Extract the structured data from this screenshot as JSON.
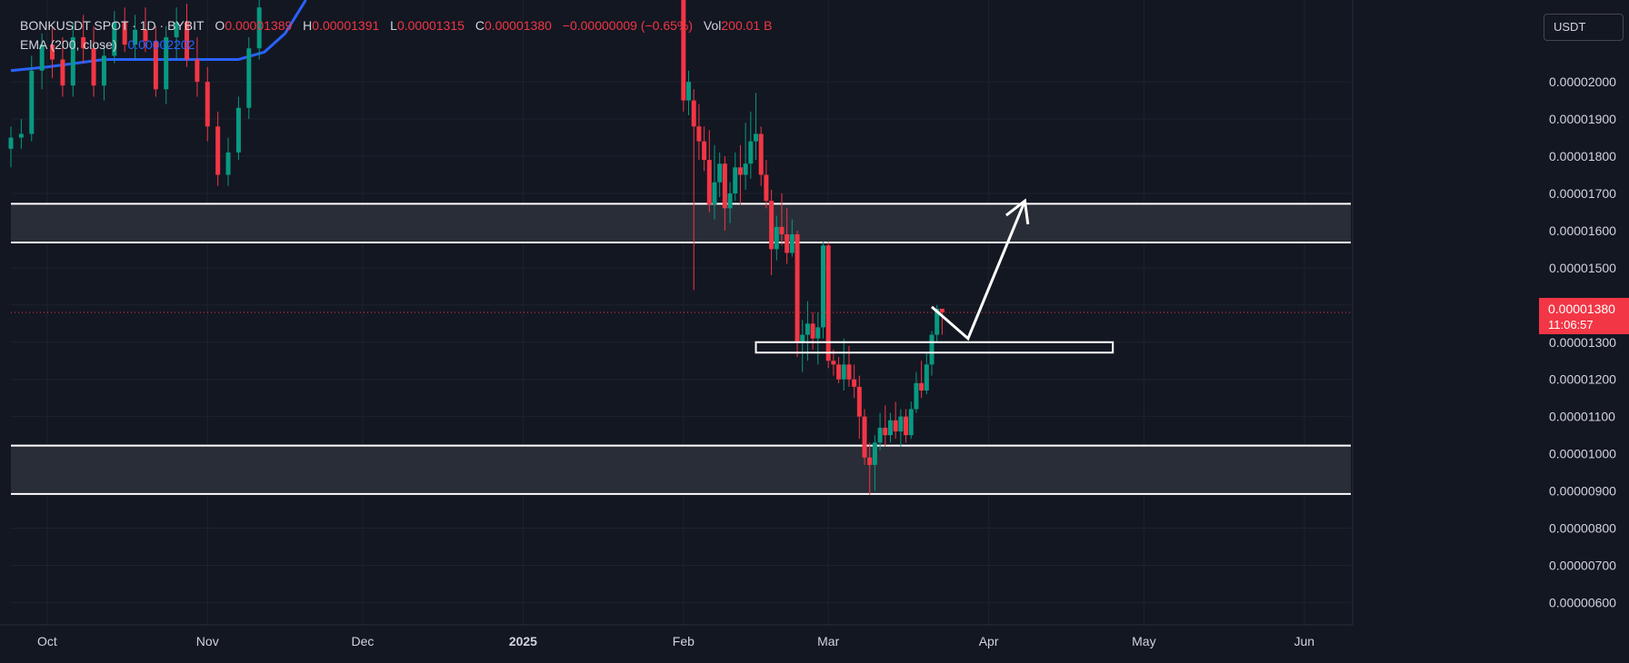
{
  "legend": {
    "symbol": "BONKUSDT SPOT · 1D · BYBIT",
    "o_label": "O",
    "o_value": "0.00001389",
    "h_label": "H",
    "h_value": "0.00001391",
    "l_label": "L",
    "l_value": "0.00001315",
    "c_label": "C",
    "c_value": "0.00001380",
    "change": "−0.00000009 (−0.65%)",
    "vol_label": "Vol",
    "vol_value": "200.01 B",
    "ema_label": "EMA (200, close)",
    "ema_value": "0.00002202"
  },
  "currency": "USDT",
  "last_price": {
    "value": "0.00001380",
    "countdown": "11:06:57"
  },
  "colors": {
    "background": "#131722",
    "up": "#089981",
    "down": "#f23645",
    "ema": "#2962ff",
    "zone": "#2a2e39",
    "axis_text": "#d1d4dc"
  },
  "chart_data": {
    "type": "candlestick",
    "x_axis": {
      "range": [
        "2024-09-24",
        "2025-06-10"
      ],
      "tick_labels": [
        {
          "label": "Oct",
          "date": "2024-10-01"
        },
        {
          "label": "Nov",
          "date": "2024-11-01"
        },
        {
          "label": "Dec",
          "date": "2024-12-01"
        },
        {
          "label": "2025",
          "date": "2025-01-01"
        },
        {
          "label": "Feb",
          "date": "2025-02-01"
        },
        {
          "label": "Mar",
          "date": "2025-03-01"
        },
        {
          "label": "Apr",
          "date": "2025-04-01"
        },
        {
          "label": "May",
          "date": "2025-05-01"
        },
        {
          "label": "Jun",
          "date": "2025-06-01"
        }
      ]
    },
    "y_axis": {
      "range": [
        5.4e-06,
        2.22e-05
      ],
      "ticks": [
        "0.00002000",
        "0.00001900",
        "0.00001800",
        "0.00001700",
        "0.00001600",
        "0.00001500",
        "0.00001400",
        "0.00001300",
        "0.00001200",
        "0.00001100",
        "0.00001000",
        "0.00000900",
        "0.00000800",
        "0.00000700",
        "0.00000600"
      ]
    },
    "last_close": 1.38e-05,
    "zones": [
      {
        "top": 1.672e-05,
        "bottom": 1.568e-05
      },
      {
        "top": 1.022e-05,
        "bottom": 8.92e-06
      }
    ],
    "small_box": {
      "start": "2025-02-15",
      "end": "2025-04-25",
      "top": 1.3e-05,
      "bottom": 1.272e-05
    },
    "projection_arrow": [
      {
        "date": "2025-03-21",
        "price": 1.395e-05
      },
      {
        "date": "2025-03-28",
        "price": 1.31e-05
      },
      {
        "date": "2025-04-08",
        "price": 1.68e-05
      }
    ],
    "ema200": [
      {
        "date": "2024-09-24",
        "value": 2.03e-05
      },
      {
        "date": "2024-10-01",
        "value": 2.04e-05
      },
      {
        "date": "2024-10-12",
        "value": 2.06e-05
      },
      {
        "date": "2024-10-25",
        "value": 2.06e-05
      },
      {
        "date": "2024-11-01",
        "value": 2.06e-05
      },
      {
        "date": "2024-11-07",
        "value": 2.06e-05
      },
      {
        "date": "2024-11-12",
        "value": 2.08e-05
      },
      {
        "date": "2024-11-16",
        "value": 2.13e-05
      },
      {
        "date": "2024-11-20",
        "value": 2.22e-05
      }
    ],
    "candles": [
      [
        "2024-09-24",
        1.82e-05,
        1.88e-05,
        1.77e-05,
        1.85e-05
      ],
      [
        "2024-09-26",
        1.85e-05,
        1.9e-05,
        1.82e-05,
        1.86e-05
      ],
      [
        "2024-09-28",
        1.86e-05,
        2.07e-05,
        1.84e-05,
        2.03e-05
      ],
      [
        "2024-09-30",
        2.03e-05,
        2.13e-05,
        1.98e-05,
        2.1e-05
      ],
      [
        "2024-10-02",
        2.1e-05,
        2.15e-05,
        2.01e-05,
        2.06e-05
      ],
      [
        "2024-10-04",
        2.06e-05,
        2.12e-05,
        1.96e-05,
        1.99e-05
      ],
      [
        "2024-10-06",
        1.99e-05,
        2.16e-05,
        1.96e-05,
        2.12e-05
      ],
      [
        "2024-10-08",
        2.12e-05,
        2.18e-05,
        2.05e-05,
        2.09e-05
      ],
      [
        "2024-10-10",
        2.09e-05,
        2.15e-05,
        1.96e-05,
        1.99e-05
      ],
      [
        "2024-10-12",
        1.99e-05,
        2.1e-05,
        1.95e-05,
        2.07e-05
      ],
      [
        "2024-10-14",
        2.07e-05,
        2.19e-05,
        2.05e-05,
        2.16e-05
      ],
      [
        "2024-10-16",
        2.16e-05,
        2.2e-05,
        2.08e-05,
        2.1e-05
      ],
      [
        "2024-10-18",
        2.1e-05,
        2.18e-05,
        2.06e-05,
        2.14e-05
      ],
      [
        "2024-10-20",
        2.14e-05,
        2.2e-05,
        2.08e-05,
        2.11e-05
      ],
      [
        "2024-10-22",
        2.11e-05,
        2.15e-05,
        1.96e-05,
        1.98e-05
      ],
      [
        "2024-10-24",
        1.98e-05,
        2.15e-05,
        1.94e-05,
        2.12e-05
      ],
      [
        "2024-10-26",
        2.12e-05,
        2.2e-05,
        2.06e-05,
        2.16e-05
      ],
      [
        "2024-10-28",
        2.16e-05,
        2.21e-05,
        2.04e-05,
        2.06e-05
      ],
      [
        "2024-10-30",
        2.06e-05,
        2.12e-05,
        1.96e-05,
        2e-05
      ],
      [
        "2024-11-01",
        2e-05,
        2.04e-05,
        1.84e-05,
        1.88e-05
      ],
      [
        "2024-11-03",
        1.88e-05,
        1.92e-05,
        1.72e-05,
        1.75e-05
      ],
      [
        "2024-11-05",
        1.75e-05,
        1.85e-05,
        1.72e-05,
        1.81e-05
      ],
      [
        "2024-11-07",
        1.81e-05,
        1.96e-05,
        1.79e-05,
        1.93e-05
      ],
      [
        "2024-11-09",
        1.93e-05,
        2.12e-05,
        1.9e-05,
        2.09e-05
      ],
      [
        "2024-11-11",
        2.09e-05,
        2.22e-05,
        2.06e-05,
        2.2e-05
      ],
      [
        "2025-02-01",
        2.22e-05,
        2.22e-05,
        1.92e-05,
        1.95e-05
      ],
      [
        "2025-02-02",
        1.95e-05,
        2.03e-05,
        1.91e-05,
        2e-05
      ],
      [
        "2025-02-03",
        1.95e-05,
        1.98e-05,
        1.44e-05,
        1.88e-05
      ],
      [
        "2025-02-04",
        1.88e-05,
        1.94e-05,
        1.79e-05,
        1.84e-05
      ],
      [
        "2025-02-05",
        1.84e-05,
        1.88e-05,
        1.76e-05,
        1.79e-05
      ],
      [
        "2025-02-06",
        1.79e-05,
        1.87e-05,
        1.65e-05,
        1.67e-05
      ],
      [
        "2025-02-07",
        1.67e-05,
        1.83e-05,
        1.63e-05,
        1.73e-05
      ],
      [
        "2025-02-08",
        1.73e-05,
        1.81e-05,
        1.69e-05,
        1.78e-05
      ],
      [
        "2025-02-09",
        1.78e-05,
        1.8e-05,
        1.6e-05,
        1.66e-05
      ],
      [
        "2025-02-10",
        1.66e-05,
        1.73e-05,
        1.62e-05,
        1.7e-05
      ],
      [
        "2025-02-11",
        1.7e-05,
        1.81e-05,
        1.68e-05,
        1.77e-05
      ],
      [
        "2025-02-12",
        1.77e-05,
        1.83e-05,
        1.67e-05,
        1.75e-05
      ],
      [
        "2025-02-13",
        1.75e-05,
        1.89e-05,
        1.71e-05,
        1.78e-05
      ],
      [
        "2025-02-14",
        1.78e-05,
        1.92e-05,
        1.74e-05,
        1.84e-05
      ],
      [
        "2025-02-15",
        1.84e-05,
        1.97e-05,
        1.79e-05,
        1.86e-05
      ],
      [
        "2025-02-16",
        1.86e-05,
        1.88e-05,
        1.72e-05,
        1.75e-05
      ],
      [
        "2025-02-17",
        1.75e-05,
        1.79e-05,
        1.66e-05,
        1.68e-05
      ],
      [
        "2025-02-18",
        1.68e-05,
        1.71e-05,
        1.48e-05,
        1.55e-05
      ],
      [
        "2025-02-19",
        1.55e-05,
        1.64e-05,
        1.52e-05,
        1.61e-05
      ],
      [
        "2025-02-20",
        1.61e-05,
        1.7e-05,
        1.56e-05,
        1.59e-05
      ],
      [
        "2025-02-21",
        1.59e-05,
        1.66e-05,
        1.51e-05,
        1.54e-05
      ],
      [
        "2025-02-22",
        1.54e-05,
        1.63e-05,
        1.53e-05,
        1.59e-05
      ],
      [
        "2025-02-23",
        1.59e-05,
        1.6e-05,
        1.26e-05,
        1.3e-05
      ],
      [
        "2025-02-24",
        1.3e-05,
        1.36e-05,
        1.22e-05,
        1.32e-05
      ],
      [
        "2025-02-25",
        1.32e-05,
        1.41e-05,
        1.25e-05,
        1.35e-05
      ],
      [
        "2025-02-26",
        1.35e-05,
        1.38e-05,
        1.28e-05,
        1.31e-05
      ],
      [
        "2025-02-27",
        1.31e-05,
        1.38e-05,
        1.24e-05,
        1.34e-05
      ],
      [
        "2025-02-28",
        1.34e-05,
        1.57e-05,
        1.31e-05,
        1.56e-05
      ],
      [
        "2025-03-01",
        1.56e-05,
        1.57e-05,
        1.23e-05,
        1.25e-05
      ],
      [
        "2025-03-02",
        1.25e-05,
        1.28e-05,
        1.21e-05,
        1.24e-05
      ],
      [
        "2025-03-03",
        1.24e-05,
        1.26e-05,
        1.19e-05,
        1.2e-05
      ],
      [
        "2025-03-04",
        1.2e-05,
        1.31e-05,
        1.17e-05,
        1.24e-05
      ],
      [
        "2025-03-05",
        1.24e-05,
        1.29e-05,
        1.18e-05,
        1.2e-05
      ],
      [
        "2025-03-06",
        1.2e-05,
        1.24e-05,
        1.15e-05,
        1.18e-05
      ],
      [
        "2025-03-07",
        1.18e-05,
        1.21e-05,
        1.04e-05,
        1.1e-05
      ],
      [
        "2025-03-08",
        1.1e-05,
        1.12e-05,
        9.7e-06,
        9.9e-06
      ],
      [
        "2025-03-09",
        9.9e-06,
        1.03e-05,
        8.9e-06,
        9.7e-06
      ],
      [
        "2025-03-10",
        9.7e-06,
        1.05e-05,
        9e-06,
        1.03e-05
      ],
      [
        "2025-03-11",
        1.03e-05,
        1.11e-05,
        1.01e-05,
        1.07e-05
      ],
      [
        "2025-03-12",
        1.07e-05,
        1.13e-05,
        1.02e-05,
        1.05e-05
      ],
      [
        "2025-03-13",
        1.05e-05,
        1.11e-05,
        1.03e-05,
        1.09e-05
      ],
      [
        "2025-03-14",
        1.09e-05,
        1.14e-05,
        1.04e-05,
        1.06e-05
      ],
      [
        "2025-03-15",
        1.06e-05,
        1.12e-05,
        1.02e-05,
        1.1e-05
      ],
      [
        "2025-03-16",
        1.1e-05,
        1.12e-05,
        1.03e-05,
        1.05e-05
      ],
      [
        "2025-03-17",
        1.05e-05,
        1.14e-05,
        1.04e-05,
        1.12e-05
      ],
      [
        "2025-03-18",
        1.12e-05,
        1.22e-05,
        1.11e-05,
        1.19e-05
      ],
      [
        "2025-03-19",
        1.19e-05,
        1.25e-05,
        1.15e-05,
        1.17e-05
      ],
      [
        "2025-03-20",
        1.17e-05,
        1.27e-05,
        1.16e-05,
        1.24e-05
      ],
      [
        "2025-03-21",
        1.24e-05,
        1.33e-05,
        1.21e-05,
        1.32e-05
      ],
      [
        "2025-03-22",
        1.32e-05,
        1.4e-05,
        1.3e-05,
        1.39e-05
      ],
      [
        "2025-03-23",
        1.39e-05,
        1.39e-05,
        1.32e-05,
        1.38e-05
      ]
    ]
  }
}
